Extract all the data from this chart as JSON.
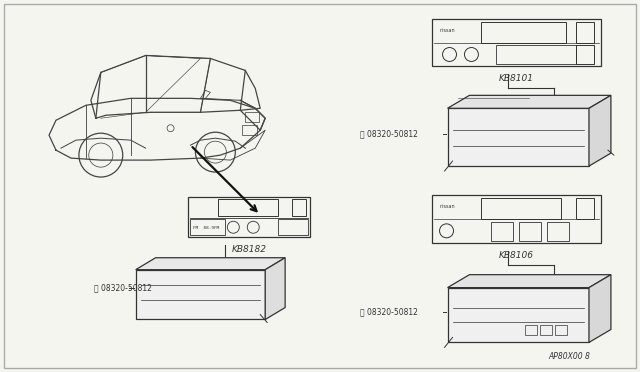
{
  "bg_color": "#f5f5f0",
  "line_color": "#333333",
  "text_color": "#333333",
  "fig_width": 6.4,
  "fig_height": 3.72,
  "dpi": 100,
  "border_color": "#aaaaaa",
  "labels": {
    "kb8101": "KB8101",
    "kb8182": "KB8182",
    "kb8106": "KB8106",
    "part_num": "08320-50812",
    "bottom_ref": "AP80X00 8"
  }
}
